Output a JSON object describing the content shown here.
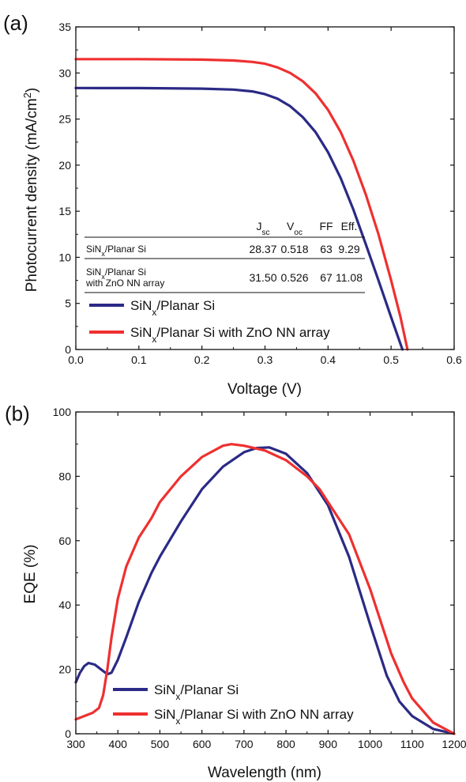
{
  "colors": {
    "planar": "#2b2a86",
    "zno": "#ef3030",
    "axis": "#111111"
  },
  "chart_data": [
    {
      "panel": "(a)",
      "type": "line",
      "xlabel": "Voltage (V)",
      "ylabel": "Photocurrent density (mA/cm",
      "ylabel_sup": "2",
      "ylabel_end": ")",
      "xlim": [
        0.0,
        0.6
      ],
      "ylim": [
        0,
        35
      ],
      "x_ticks": [
        "0.0",
        "0.1",
        "0.2",
        "0.3",
        "0.4",
        "0.5",
        "0.6"
      ],
      "y_ticks": [
        "0",
        "5",
        "10",
        "15",
        "20",
        "25",
        "30",
        "35"
      ],
      "legend_placement": "bottom-left",
      "series": [
        {
          "name": "SiNx/Planar Si",
          "name_main": "SiN",
          "name_sub": "x",
          "name_rest": "/Planar Si",
          "color": "#2b2a86",
          "points": [
            [
              0,
              28.37
            ],
            [
              0.1,
              28.36
            ],
            [
              0.2,
              28.3
            ],
            [
              0.25,
              28.2
            ],
            [
              0.28,
              28.0
            ],
            [
              0.3,
              27.7
            ],
            [
              0.32,
              27.2
            ],
            [
              0.34,
              26.4
            ],
            [
              0.36,
              25.2
            ],
            [
              0.38,
              23.6
            ],
            [
              0.4,
              21.4
            ],
            [
              0.42,
              18.6
            ],
            [
              0.44,
              15.2
            ],
            [
              0.46,
              11.4
            ],
            [
              0.48,
              7.5
            ],
            [
              0.5,
              3.5
            ],
            [
              0.518,
              0
            ]
          ]
        },
        {
          "name": "SiNx/Planar Si with ZnO NN array",
          "name_main": "SiN",
          "name_sub": "x",
          "name_rest": "/Planar Si with ZnO NN array",
          "color": "#ef3030",
          "points": [
            [
              0,
              31.5
            ],
            [
              0.1,
              31.5
            ],
            [
              0.2,
              31.45
            ],
            [
              0.25,
              31.35
            ],
            [
              0.28,
              31.2
            ],
            [
              0.3,
              31.0
            ],
            [
              0.32,
              30.6
            ],
            [
              0.34,
              30.0
            ],
            [
              0.36,
              29.1
            ],
            [
              0.38,
              27.8
            ],
            [
              0.4,
              26.0
            ],
            [
              0.42,
              23.6
            ],
            [
              0.44,
              20.5
            ],
            [
              0.46,
              16.8
            ],
            [
              0.48,
              12.5
            ],
            [
              0.5,
              7.5
            ],
            [
              0.515,
              3.5
            ],
            [
              0.526,
              0
            ]
          ]
        }
      ],
      "table": {
        "headers": [
          {
            "main": "J",
            "sub": "sc"
          },
          {
            "main": "V",
            "sub": "oc"
          },
          {
            "main": "FF",
            "sub": ""
          },
          {
            "main": "Eff.",
            "sub": ""
          }
        ],
        "rows": [
          {
            "label_main": "SiN",
            "label_sub": "x",
            "label_rest": "/Planar Si",
            "label_line2": "",
            "values": [
              "28.37",
              "0.518",
              "63",
              "9.29"
            ]
          },
          {
            "label_main": "SiN",
            "label_sub": "x",
            "label_rest": "/Planar Si",
            "label_line2": "with ZnO NN array",
            "values": [
              "31.50",
              "0.526",
              "67",
              "11.08"
            ]
          }
        ]
      }
    },
    {
      "panel": "(b)",
      "type": "line",
      "xlabel": "Wavelength (nm)",
      "ylabel": "EQE (%)",
      "xlim": [
        300,
        1200
      ],
      "ylim": [
        0,
        100
      ],
      "x_ticks": [
        "300",
        "400",
        "500",
        "600",
        "700",
        "800",
        "900",
        "1000",
        "1100",
        "1200"
      ],
      "y_ticks": [
        "0",
        "20",
        "40",
        "60",
        "80",
        "100"
      ],
      "legend_placement": "bottom-left",
      "series": [
        {
          "name": "SiNx/Planar Si",
          "name_main": "SiN",
          "name_sub": "x",
          "name_rest": "/Planar Si",
          "color": "#2b2a86",
          "points": [
            [
              300,
              16
            ],
            [
              310,
              19
            ],
            [
              320,
              21
            ],
            [
              330,
              22
            ],
            [
              345,
              21.5
            ],
            [
              360,
              20
            ],
            [
              375,
              18.5
            ],
            [
              385,
              19
            ],
            [
              400,
              23
            ],
            [
              420,
              30
            ],
            [
              450,
              41
            ],
            [
              480,
              50
            ],
            [
              500,
              55
            ],
            [
              550,
              66
            ],
            [
              600,
              76
            ],
            [
              650,
              83
            ],
            [
              700,
              87.5
            ],
            [
              730,
              88.8
            ],
            [
              760,
              89
            ],
            [
              800,
              87
            ],
            [
              850,
              81
            ],
            [
              900,
              71
            ],
            [
              950,
              55
            ],
            [
              1000,
              34
            ],
            [
              1040,
              18
            ],
            [
              1070,
              10
            ],
            [
              1100,
              5.5
            ],
            [
              1150,
              1.5
            ],
            [
              1200,
              0
            ]
          ]
        },
        {
          "name": "SiNx/Planar Si with ZnO NN array",
          "name_main": "SiN",
          "name_sub": "x",
          "name_rest": "/Planar Si with ZnO NN array",
          "color": "#ef3030",
          "points": [
            [
              300,
              4.5
            ],
            [
              320,
              5.5
            ],
            [
              340,
              6.5
            ],
            [
              355,
              8
            ],
            [
              365,
              12
            ],
            [
              375,
              20
            ],
            [
              385,
              30
            ],
            [
              400,
              42
            ],
            [
              420,
              52
            ],
            [
              450,
              61
            ],
            [
              480,
              67
            ],
            [
              500,
              72
            ],
            [
              550,
              80
            ],
            [
              600,
              86
            ],
            [
              650,
              89.5
            ],
            [
              670,
              90
            ],
            [
              700,
              89.5
            ],
            [
              750,
              88
            ],
            [
              800,
              85
            ],
            [
              850,
              80
            ],
            [
              880,
              76
            ],
            [
              900,
              72
            ],
            [
              950,
              62
            ],
            [
              1000,
              45
            ],
            [
              1050,
              25
            ],
            [
              1080,
              16
            ],
            [
              1100,
              11
            ],
            [
              1150,
              3.5
            ],
            [
              1200,
              0
            ]
          ]
        }
      ]
    }
  ]
}
